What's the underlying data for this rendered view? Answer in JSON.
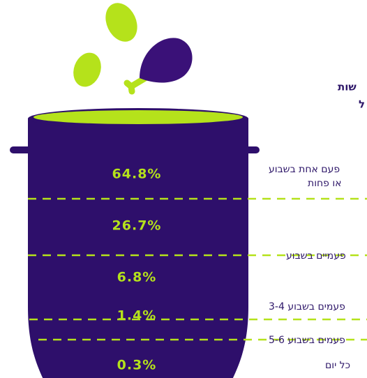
{
  "title_fragments": [
    "שות",
    "ל"
  ],
  "rows": [
    {
      "value": "64.8%",
      "label": [
        "פעם אחת בשבוע",
        "או פחות"
      ]
    },
    {
      "value": "26.7%",
      "label": [
        "פעמיים בשבוע"
      ]
    },
    {
      "value": "6.8%",
      "label": [
        "3-4 פעמים בשבוע"
      ]
    },
    {
      "value": "1.4%",
      "label": [
        "5-6 פעמים בשבוע"
      ]
    },
    {
      "value": "0.3%",
      "label": [
        "כל יום"
      ]
    }
  ]
}
